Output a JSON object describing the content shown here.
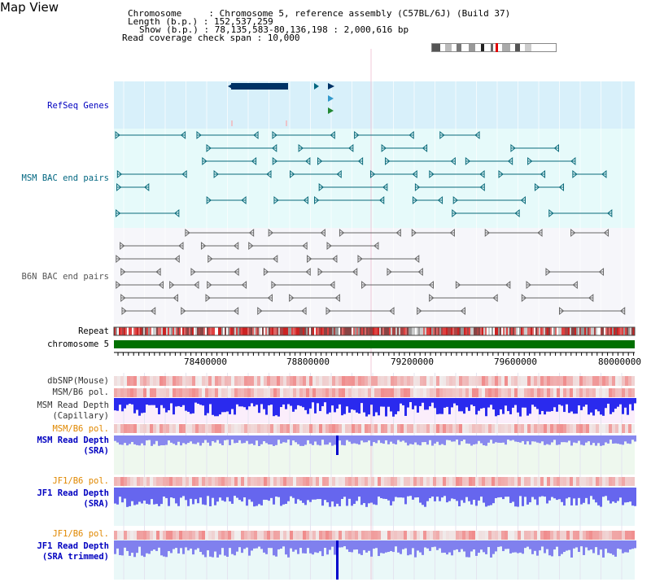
{
  "view": {
    "title": "Map View"
  },
  "info": {
    "chromosome": "Chromosome     : Chromosome 5, reference assembly (C57BL/6J) (Build 37)",
    "length": "Length (b.p.) : 152,537,259",
    "show": "Show (b.p.) : 78,135,583-80,136,198 : 2,000,616 bp",
    "coverage": "Read coverage check span : 10,000"
  },
  "tracks": {
    "refseq": {
      "label": "RefSeq Genes",
      "color": "#0000c0"
    },
    "msm_bac": {
      "label": "MSM BAC end pairs",
      "color": "#006680"
    },
    "b6n_bac": {
      "label": "B6N BAC end pairs",
      "color": "#555555"
    },
    "repeat": {
      "label": "Repeat",
      "color": "#000000"
    },
    "chromosome": {
      "label": "chromosome 5",
      "color": "#000000"
    },
    "dbsnp": {
      "label": "dbSNP(Mouse)",
      "color": "#333333"
    },
    "msm_b6_pol_1": {
      "label": "MSM/B6 pol.",
      "color": "#333333"
    },
    "msm_read_depth_cap": {
      "label": "MSM Read Depth",
      "label2": "(Capillary)",
      "color": "#333333"
    },
    "msm_b6_pol_2": {
      "label": "MSM/B6 pol.",
      "color": "#e08800"
    },
    "msm_read_depth_sra": {
      "label": "MSM Read Depth",
      "label2": "(SRA)",
      "color": "#0000c0"
    },
    "jf1_b6_pol_1": {
      "label": "JF1/B6 pol.",
      "color": "#e08800"
    },
    "jf1_read_depth_sra": {
      "label": "JF1 Read Depth",
      "label2": "(SRA)",
      "color": "#0000c0"
    },
    "jf1_b6_pol_2": {
      "label": "JF1/B6 pol.",
      "color": "#e08800"
    },
    "jf1_read_depth_trim": {
      "label": "JF1 Read Depth",
      "label2": "(SRA trimmed)",
      "color": "#0000c0"
    }
  },
  "axis": {
    "ticks": [
      "78400000",
      "78800000",
      "79200000",
      "79600000",
      "80000000"
    ]
  },
  "colors": {
    "refseq_bg": "#d8f0fa",
    "msm_bg": "#e6fafa",
    "b6n_bg": "#f4f4f8",
    "chrom_bar": "#007000",
    "depth_blue": "#3a3aee",
    "pol_red": "#f04040"
  }
}
